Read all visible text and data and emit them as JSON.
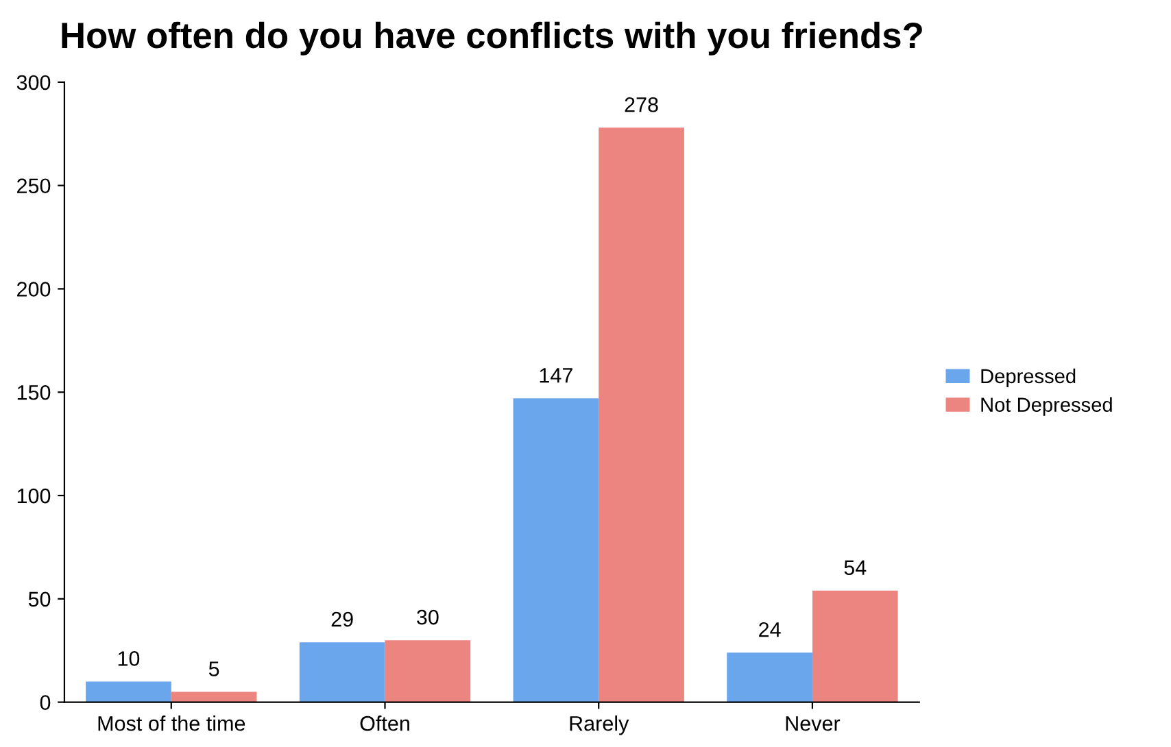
{
  "chart_data": {
    "type": "bar",
    "title": "How often do you have conflicts with you friends?",
    "categories": [
      "Most of the time",
      "Often",
      "Rarely",
      "Never"
    ],
    "series": [
      {
        "name": "Depressed",
        "color": "#6aa6ec",
        "values": [
          10,
          29,
          147,
          24
        ]
      },
      {
        "name": "Not Depressed",
        "color": "#ec8580",
        "values": [
          5,
          30,
          278,
          54
        ]
      }
    ],
    "ylim": [
      0,
      300
    ],
    "yticks": [
      0,
      50,
      100,
      150,
      200,
      250,
      300
    ],
    "grid": false,
    "legend": "right",
    "data_labels": true
  }
}
